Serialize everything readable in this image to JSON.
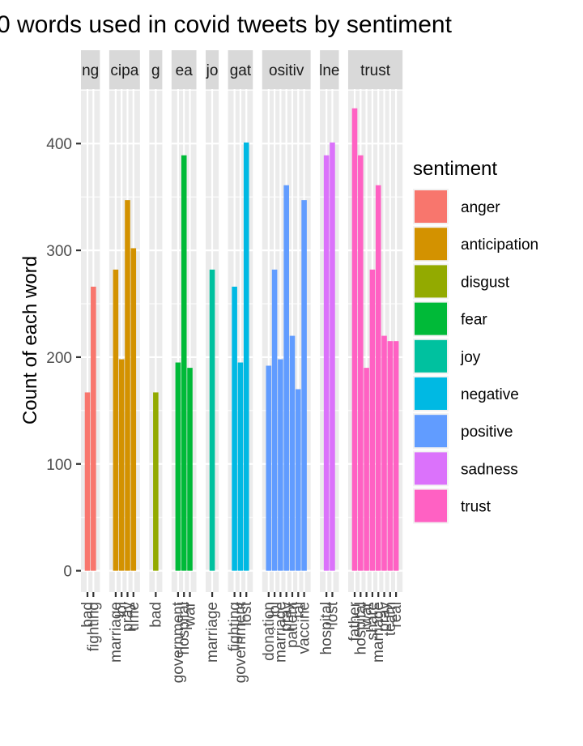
{
  "chart_data": {
    "type": "bar",
    "title": "0 words used in covid tweets by sentiment",
    "ylabel": "Count of each word",
    "xlabel": "",
    "ylim": [
      0,
      450
    ],
    "yticks": [
      0,
      100,
      200,
      300,
      400
    ],
    "legend": {
      "title": "sentiment",
      "position": "right",
      "entries": [
        "anger",
        "anticipation",
        "disgust",
        "fear",
        "joy",
        "negative",
        "positive",
        "sadness",
        "trust"
      ]
    },
    "colors": {
      "anger": "#F8766D",
      "anticipation": "#D39200",
      "disgust": "#93AA00",
      "fear": "#00BA38",
      "joy": "#00C19F",
      "negative": "#00B9E3",
      "positive": "#619CFF",
      "sadness": "#DB72FB",
      "trust": "#FF61C3"
    },
    "facets": [
      {
        "strip": "ng",
        "sentiment": "anger",
        "categories": [
          "bad",
          "fighting"
        ],
        "values": [
          167,
          266
        ]
      },
      {
        "strip": "cipa",
        "sentiment": "anticipation",
        "categories": [
          "marriage",
          "lol",
          "pray",
          "time"
        ],
        "values": [
          282,
          198,
          347,
          302
        ]
      },
      {
        "strip": "g",
        "sentiment": "disgust",
        "categories": [
          "bad"
        ],
        "values": [
          167
        ]
      },
      {
        "strip": "ea",
        "sentiment": "fear",
        "categories": [
          "government",
          "hospital",
          "war"
        ],
        "values": [
          195,
          389,
          190
        ]
      },
      {
        "strip": "jo",
        "sentiment": "joy",
        "categories": [
          "marriage"
        ],
        "values": [
          282
        ]
      },
      {
        "strip": "gat",
        "sentiment": "negative",
        "categories": [
          "fighting",
          "government",
          "lost"
        ],
        "values": [
          266,
          195,
          401
        ]
      },
      {
        "strip": "ositiv",
        "sentiment": "positive",
        "categories": [
          "donation",
          "lol",
          "marriage",
          "pray",
          "patient",
          "tal",
          "vaccine"
        ],
        "values": [
          192,
          282,
          198,
          361,
          220,
          170,
          347
        ]
      },
      {
        "strip": "lne",
        "sentiment": "sadness",
        "categories": [
          "hospital",
          "lost"
        ],
        "values": [
          389,
          401
        ]
      },
      {
        "strip": "trust",
        "sentiment": "trust",
        "categories": [
          "father",
          "hospital",
          "war",
          "share",
          "marriage",
          "pray",
          "team",
          "real"
        ],
        "values": [
          433,
          389,
          190,
          282,
          361,
          220,
          215,
          215
        ]
      }
    ]
  }
}
